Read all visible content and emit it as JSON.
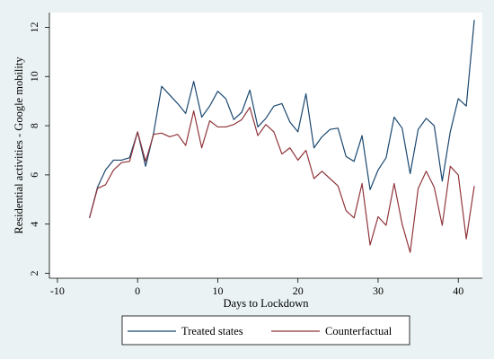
{
  "chart_data": {
    "type": "line",
    "xlabel": "Days to Lockdown",
    "ylabel": "Residential activities - Google mobility",
    "xlim": [
      -11,
      43
    ],
    "ylim": [
      1.8,
      12.6
    ],
    "xticks": [
      -10,
      0,
      10,
      20,
      30,
      40
    ],
    "yticks": [
      2,
      4,
      6,
      8,
      10,
      12
    ],
    "grid": false,
    "legend_position": "bottom",
    "x": [
      -6,
      -5,
      -4,
      -3,
      -2,
      -1,
      0,
      1,
      2,
      3,
      4,
      5,
      6,
      7,
      8,
      9,
      10,
      11,
      12,
      13,
      14,
      15,
      16,
      17,
      18,
      19,
      20,
      21,
      22,
      23,
      24,
      25,
      26,
      27,
      28,
      29,
      30,
      31,
      32,
      33,
      34,
      35,
      36,
      37,
      38,
      39,
      40,
      41,
      42
    ],
    "series": [
      {
        "name": "Treated states",
        "color": "#1a476f",
        "values": [
          4.25,
          5.5,
          6.2,
          6.6,
          6.6,
          6.7,
          7.75,
          6.35,
          7.7,
          9.6,
          9.25,
          8.9,
          8.5,
          9.8,
          8.35,
          8.8,
          9.4,
          9.1,
          8.25,
          8.55,
          9.45,
          7.95,
          8.3,
          8.8,
          8.9,
          8.15,
          7.75,
          9.3,
          7.1,
          7.55,
          7.85,
          7.9,
          6.75,
          6.55,
          7.6,
          5.4,
          6.2,
          6.7,
          8.35,
          7.9,
          6.05,
          7.85,
          8.3,
          8.0,
          5.75,
          7.75,
          9.1,
          8.8,
          12.3
        ]
      },
      {
        "name": "Counterfactual",
        "color": "#90353b",
        "values": [
          4.25,
          5.45,
          5.6,
          6.2,
          6.5,
          6.55,
          7.75,
          6.55,
          7.65,
          7.7,
          7.55,
          7.65,
          7.2,
          8.6,
          7.1,
          8.2,
          7.95,
          7.95,
          8.05,
          8.25,
          8.75,
          7.6,
          8.05,
          7.75,
          6.85,
          7.1,
          6.6,
          7.0,
          5.85,
          6.15,
          5.85,
          5.55,
          4.55,
          4.25,
          5.65,
          3.15,
          4.3,
          3.95,
          5.65,
          4.0,
          2.85,
          5.45,
          6.15,
          5.5,
          3.95,
          6.35,
          6.0,
          3.4,
          5.55
        ]
      }
    ]
  }
}
